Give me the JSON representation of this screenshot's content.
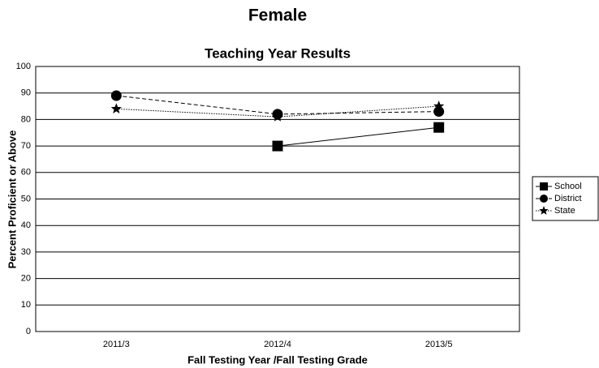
{
  "chart_data": {
    "type": "line",
    "title": "Female",
    "subtitle": "Teaching Year Results",
    "x_label": "Fall Testing Year /Fall Testing Grade",
    "y_label": "Percent Proficient or Above",
    "categories": [
      "2011/3",
      "2012/4",
      "2013/5"
    ],
    "series": [
      {
        "name": "School",
        "color": "#000000",
        "marker": "square",
        "line_style": "solid",
        "values": [
          null,
          70,
          77
        ]
      },
      {
        "name": "District",
        "color": "#000000",
        "marker": "circle",
        "line_style": "dashed",
        "values": [
          89,
          82,
          83
        ]
      },
      {
        "name": "State",
        "color": "#000000",
        "marker": "star",
        "line_style": "dotted",
        "values": [
          84,
          81,
          85
        ]
      }
    ],
    "ylim": [
      0,
      100
    ],
    "yticks": [
      0,
      10,
      20,
      30,
      40,
      50,
      60,
      70,
      80,
      90,
      100
    ],
    "grid": true,
    "legend": "right"
  }
}
